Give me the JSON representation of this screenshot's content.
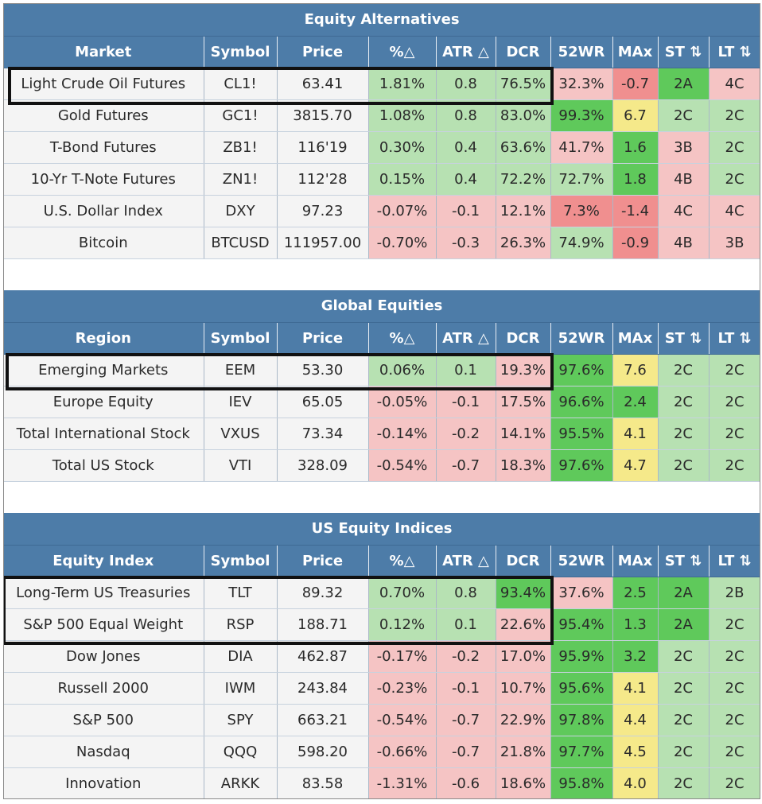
{
  "columns_sections": [
    {
      "title": "Equity Alternatives",
      "headers": [
        "Market",
        "Symbol",
        "Price",
        "%△",
        "ATR △",
        "DCR",
        "52WR",
        "MAx",
        "ST ⇅",
        "LT ⇅"
      ],
      "rows": [
        {
          "name": "Light Crude Oil Futures",
          "symbol": "CL1!",
          "price": "63.41",
          "pct": "1.81%",
          "atr": "0.8",
          "dcr": "76.5%",
          "wr": "32.3%",
          "max": "-0.7",
          "st": "2A",
          "lt": "4C"
        },
        {
          "name": "Gold Futures",
          "symbol": "GC1!",
          "price": "3815.70",
          "pct": "1.08%",
          "atr": "0.8",
          "dcr": "83.0%",
          "wr": "99.3%",
          "max": "6.7",
          "st": "2C",
          "lt": "2C"
        },
        {
          "name": "T-Bond Futures",
          "symbol": "ZB1!",
          "price": "116'19",
          "pct": "0.30%",
          "atr": "0.4",
          "dcr": "63.6%",
          "wr": "41.7%",
          "max": "1.6",
          "st": "3B",
          "lt": "2C"
        },
        {
          "name": "10-Yr T-Note Futures",
          "symbol": "ZN1!",
          "price": "112'28",
          "pct": "0.15%",
          "atr": "0.4",
          "dcr": "72.2%",
          "wr": "72.7%",
          "max": "1.8",
          "st": "4B",
          "lt": "2C"
        },
        {
          "name": "U.S. Dollar Index",
          "symbol": "DXY",
          "price": "97.23",
          "pct": "-0.07%",
          "atr": "-0.1",
          "dcr": "12.1%",
          "wr": "7.3%",
          "max": "-1.4",
          "st": "4C",
          "lt": "4C"
        },
        {
          "name": "Bitcoin",
          "symbol": "BTCUSD",
          "price": "111957.00",
          "pct": "-0.70%",
          "atr": "-0.3",
          "dcr": "26.3%",
          "wr": "74.9%",
          "max": "-0.9",
          "st": "4B",
          "lt": "3B"
        }
      ]
    },
    {
      "title": "Global Equities",
      "headers": [
        "Region",
        "Symbol",
        "Price",
        "%△",
        "ATR △",
        "DCR",
        "52WR",
        "MAx",
        "ST ⇅",
        "LT ⇅"
      ],
      "rows": [
        {
          "name": "Emerging Markets",
          "symbol": "EEM",
          "price": "53.30",
          "pct": "0.06%",
          "atr": "0.1",
          "dcr": "19.3%",
          "wr": "97.6%",
          "max": "7.6",
          "st": "2C",
          "lt": "2C"
        },
        {
          "name": "Europe Equity",
          "symbol": "IEV",
          "price": "65.05",
          "pct": "-0.05%",
          "atr": "-0.1",
          "dcr": "17.5%",
          "wr": "96.6%",
          "max": "2.4",
          "st": "2C",
          "lt": "2C"
        },
        {
          "name": "Total International Stock",
          "symbol": "VXUS",
          "price": "73.34",
          "pct": "-0.14%",
          "atr": "-0.2",
          "dcr": "14.1%",
          "wr": "95.5%",
          "max": "4.1",
          "st": "2C",
          "lt": "2C"
        },
        {
          "name": "Total US Stock",
          "symbol": "VTI",
          "price": "328.09",
          "pct": "-0.54%",
          "atr": "-0.7",
          "dcr": "18.3%",
          "wr": "97.6%",
          "max": "4.7",
          "st": "2C",
          "lt": "2C"
        }
      ]
    },
    {
      "title": "US Equity Indices",
      "headers": [
        "Equity Index",
        "Symbol",
        "Price",
        "%△",
        "ATR △",
        "DCR",
        "52WR",
        "MAx",
        "ST ⇅",
        "LT ⇅"
      ],
      "rows": [
        {
          "name": "Long-Term US Treasuries",
          "symbol": "TLT",
          "price": "89.32",
          "pct": "0.70%",
          "atr": "0.8",
          "dcr": "93.4%",
          "wr": "37.6%",
          "max": "2.5",
          "st": "2A",
          "lt": "2B"
        },
        {
          "name": "S&P 500 Equal Weight",
          "symbol": "RSP",
          "price": "188.71",
          "pct": "0.12%",
          "atr": "0.1",
          "dcr": "22.6%",
          "wr": "95.4%",
          "max": "1.3",
          "st": "2A",
          "lt": "2C"
        },
        {
          "name": "Dow Jones",
          "symbol": "DIA",
          "price": "462.87",
          "pct": "-0.17%",
          "atr": "-0.2",
          "dcr": "17.0%",
          "wr": "95.9%",
          "max": "3.2",
          "st": "2C",
          "lt": "2C"
        },
        {
          "name": "Russell 2000",
          "symbol": "IWM",
          "price": "243.84",
          "pct": "-0.23%",
          "atr": "-0.1",
          "dcr": "10.7%",
          "wr": "95.6%",
          "max": "4.1",
          "st": "2C",
          "lt": "2C"
        },
        {
          "name": "S&P 500",
          "symbol": "SPY",
          "price": "663.21",
          "pct": "-0.54%",
          "atr": "-0.7",
          "dcr": "22.9%",
          "wr": "97.8%",
          "max": "4.4",
          "st": "2C",
          "lt": "2C"
        },
        {
          "name": "Nasdaq",
          "symbol": "QQQ",
          "price": "598.20",
          "pct": "-0.66%",
          "atr": "-0.7",
          "dcr": "21.8%",
          "wr": "97.7%",
          "max": "4.5",
          "st": "2C",
          "lt": "2C"
        },
        {
          "name": "Innovation",
          "symbol": "ARKK",
          "price": "83.58",
          "pct": "-1.31%",
          "atr": "-0.6",
          "dcr": "18.6%",
          "wr": "95.8%",
          "max": "4.0",
          "st": "2C",
          "lt": "2C"
        }
      ]
    }
  ],
  "colors": {
    "header_blue": "#4d7ca8",
    "light_green": "#b7e1b2",
    "light_red": "#f5c4c4",
    "strong_green": "#5fc95b",
    "strong_red": "#f08f8f",
    "yellow": "#f5e98a"
  }
}
